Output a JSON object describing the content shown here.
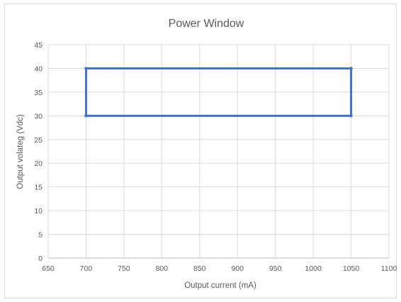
{
  "chart_data": {
    "type": "scatter",
    "title": "Power Window",
    "xlabel": "Output current (mA)",
    "ylabel": "Output  volateg (Vdc)",
    "xlim": [
      650,
      1100
    ],
    "ylim": [
      0,
      45
    ],
    "xticks": [
      650,
      700,
      750,
      800,
      850,
      900,
      950,
      1000,
      1050,
      1100
    ],
    "yticks": [
      0,
      5,
      10,
      15,
      20,
      25,
      30,
      35,
      40,
      45
    ],
    "grid": true,
    "legend": "none",
    "series": [
      {
        "color": "#4472c4",
        "lines": true,
        "markers": true,
        "points": [
          {
            "x": 700,
            "y": 30
          },
          {
            "x": 700,
            "y": 40
          },
          {
            "x": 1050,
            "y": 40
          },
          {
            "x": 1050,
            "y": 30
          },
          {
            "x": 700,
            "y": 30
          }
        ]
      }
    ]
  }
}
